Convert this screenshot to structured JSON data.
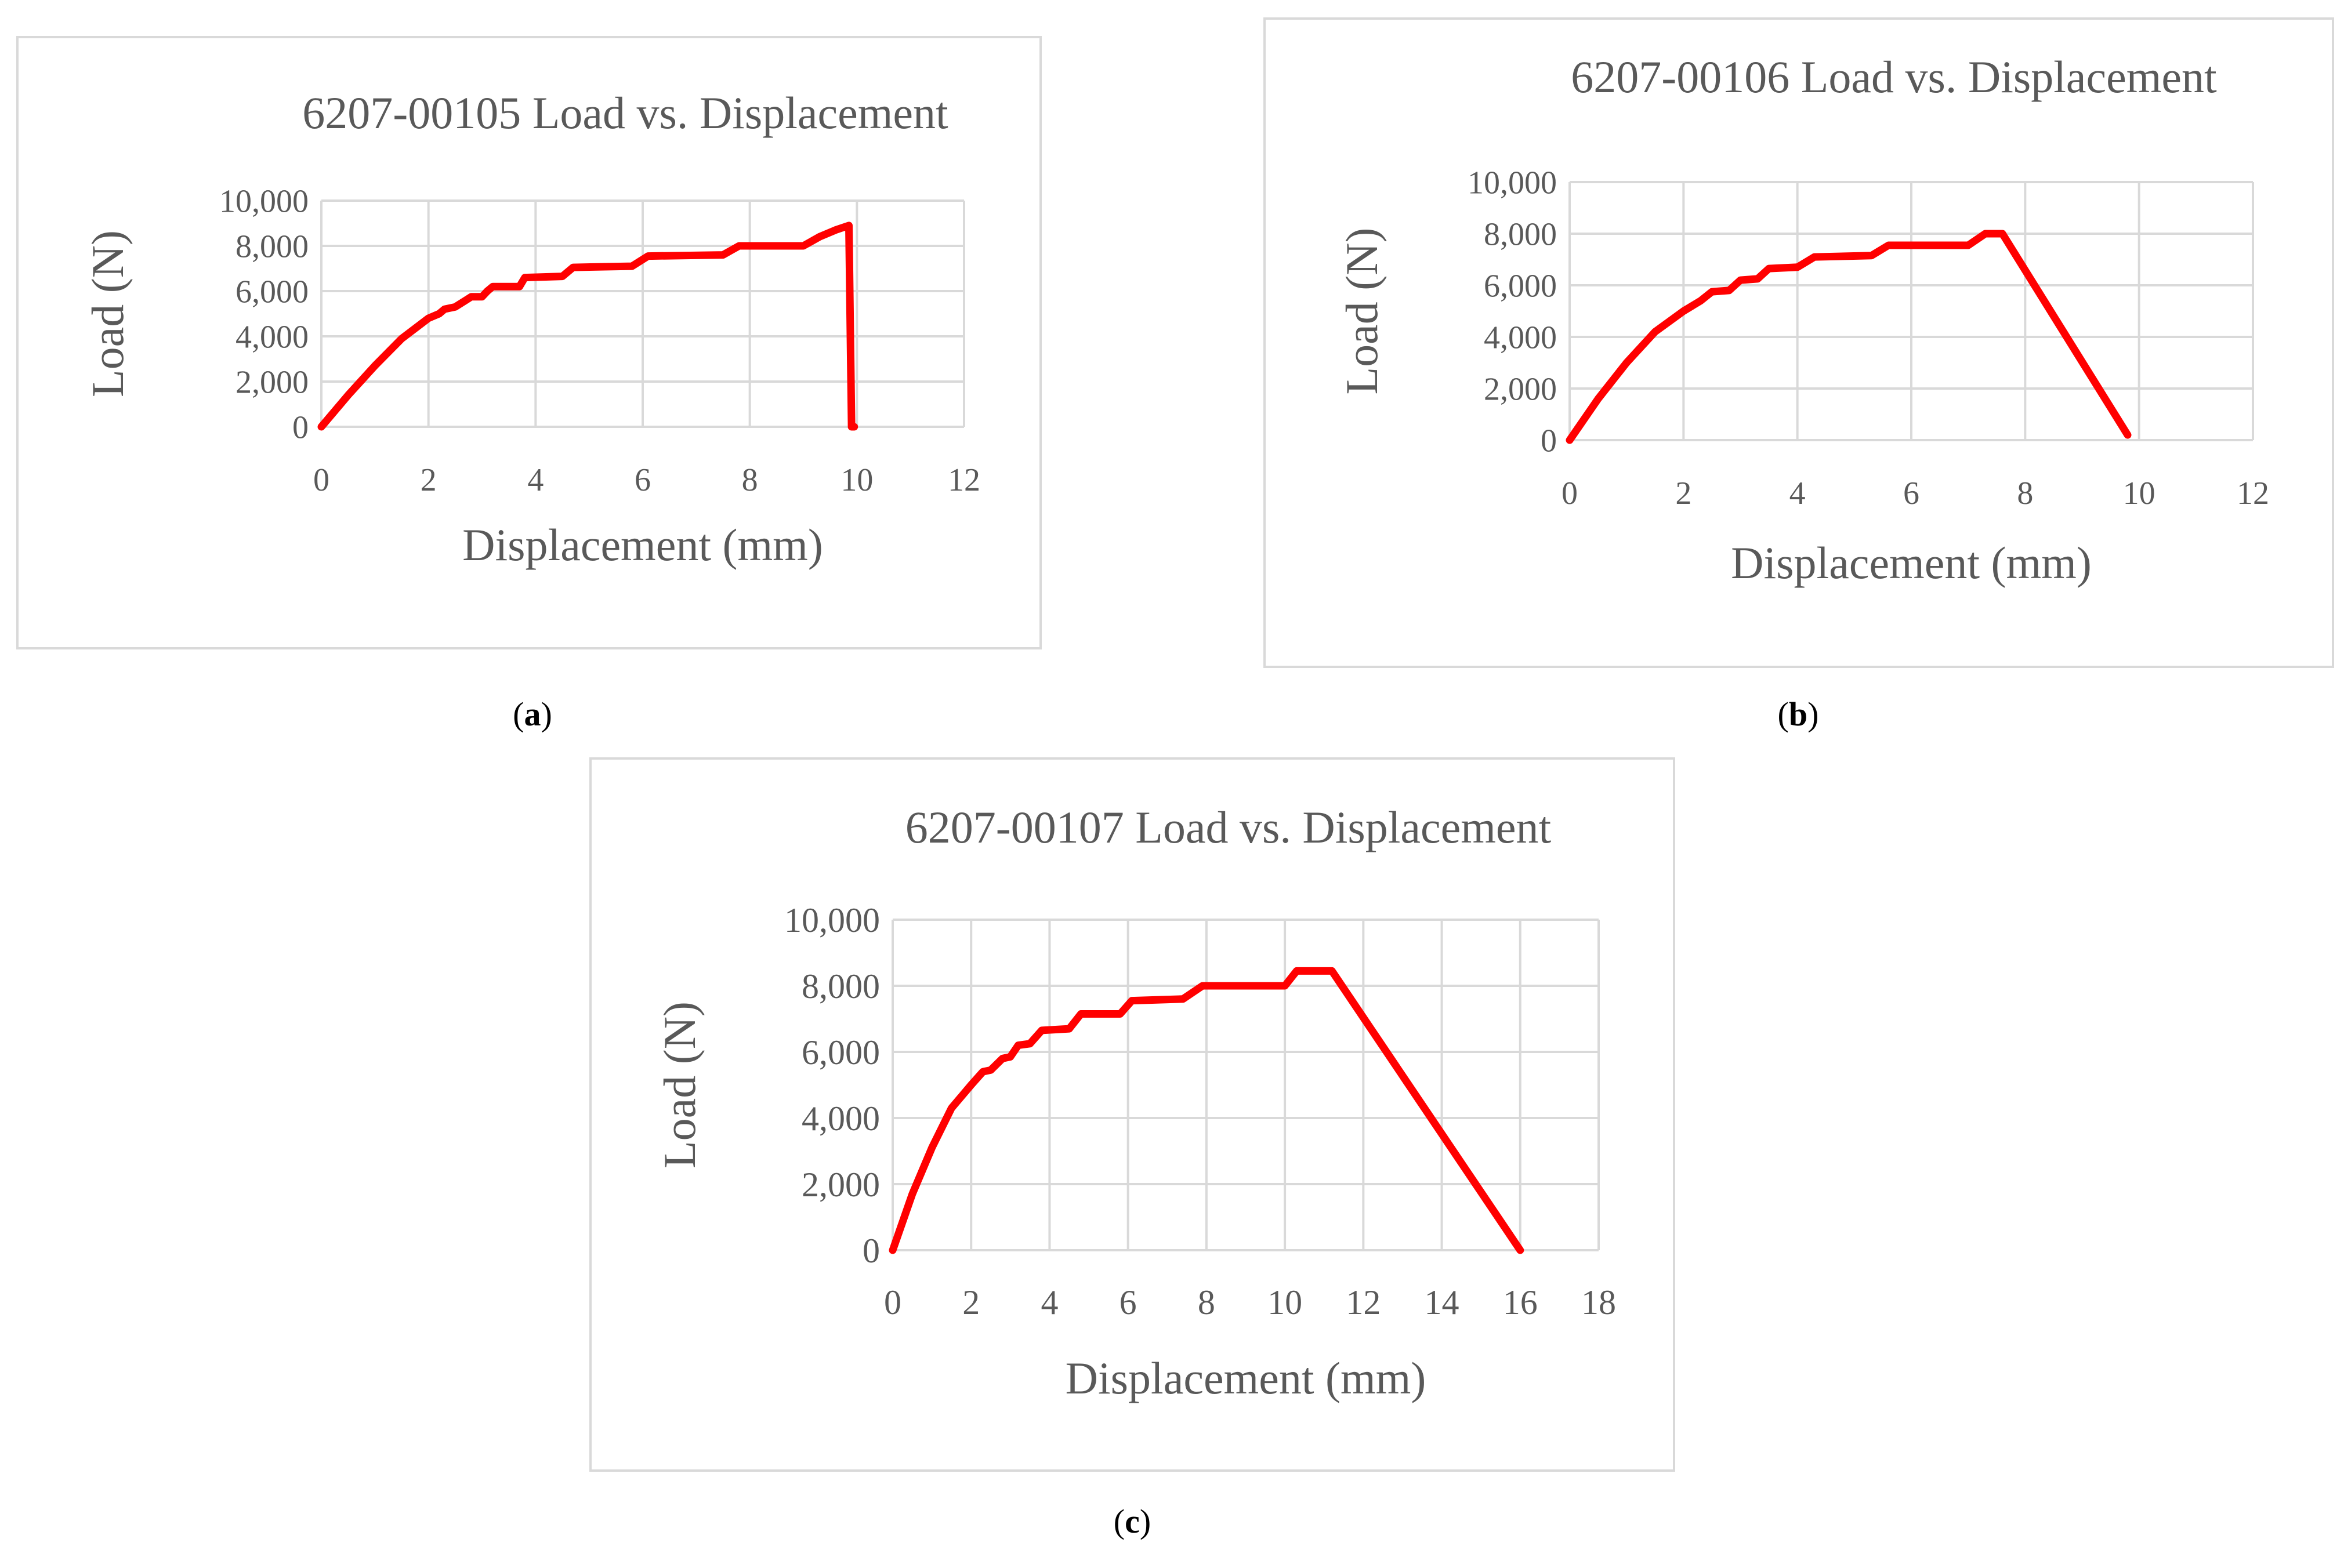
{
  "colors": {
    "line": "#ff0000",
    "grid": "#d9d9d9",
    "text": "#595959",
    "border": "#d9d9d9"
  },
  "chart_data": [
    {
      "id": "a",
      "type": "line",
      "caption": "a",
      "title": "6207-00105 Load vs. Displacement",
      "xlabel": "Displacement (mm)",
      "ylabel": "Load (N)",
      "xlim": [
        0,
        12
      ],
      "ylim": [
        0,
        10000
      ],
      "xticks": [
        0,
        2,
        4,
        6,
        8,
        10,
        12
      ],
      "xtick_labels": [
        "0",
        "2",
        "4",
        "6",
        "8",
        "10",
        "12"
      ],
      "yticks": [
        0,
        2000,
        4000,
        6000,
        8000,
        10000
      ],
      "ytick_labels": [
        "0",
        "2,000",
        "4,000",
        "6,000",
        "8,000",
        "10,000"
      ],
      "grid": true,
      "series": [
        {
          "name": "Load",
          "x": [
            0,
            0.5,
            1.0,
            1.5,
            2.0,
            2.2,
            2.3,
            2.5,
            2.7,
            2.8,
            3.0,
            3.1,
            3.2,
            3.4,
            3.7,
            3.8,
            4.5,
            4.7,
            5.8,
            6.1,
            7.5,
            7.8,
            9.0,
            9.3,
            9.6,
            9.85,
            9.9,
            9.95
          ],
          "y": [
            0,
            1400,
            2700,
            3900,
            4800,
            5000,
            5200,
            5300,
            5600,
            5750,
            5750,
            6000,
            6200,
            6200,
            6200,
            6600,
            6650,
            7050,
            7100,
            7550,
            7600,
            8000,
            8000,
            8400,
            8700,
            8900,
            0,
            0
          ]
        }
      ]
    },
    {
      "id": "b",
      "type": "line",
      "caption": "b",
      "title": "6207-00106 Load vs. Displacement",
      "xlabel": "Displacement (mm)",
      "ylabel": "Load (N)",
      "xlim": [
        0,
        12
      ],
      "ylim": [
        0,
        10000
      ],
      "xticks": [
        0,
        2,
        4,
        6,
        8,
        10,
        12
      ],
      "xtick_labels": [
        "0",
        "2",
        "4",
        "6",
        "8",
        "10",
        "12"
      ],
      "yticks": [
        0,
        2000,
        4000,
        6000,
        8000,
        10000
      ],
      "ytick_labels": [
        "0",
        "2,000",
        "4,000",
        "6,000",
        "8,000",
        "10,000"
      ],
      "grid": true,
      "series": [
        {
          "name": "Load",
          "x": [
            0,
            0.5,
            1.0,
            1.5,
            2.0,
            2.3,
            2.5,
            2.8,
            3.0,
            3.3,
            3.5,
            4.0,
            4.3,
            5.3,
            5.6,
            7.0,
            7.3,
            7.6,
            9.8
          ],
          "y": [
            0,
            1600,
            3000,
            4200,
            5000,
            5400,
            5750,
            5800,
            6200,
            6250,
            6650,
            6700,
            7100,
            7150,
            7550,
            7550,
            8000,
            8000,
            200
          ]
        }
      ]
    },
    {
      "id": "c",
      "type": "line",
      "caption": "c",
      "title": "6207-00107 Load vs. Displacement",
      "xlabel": "Displacement (mm)",
      "ylabel": "Load (N)",
      "xlim": [
        0,
        18
      ],
      "ylim": [
        0,
        10000
      ],
      "xticks": [
        0,
        2,
        4,
        6,
        8,
        10,
        12,
        14,
        16,
        18
      ],
      "xtick_labels": [
        "0",
        "2",
        "4",
        "6",
        "8",
        "10",
        "12",
        "14",
        "16",
        "18"
      ],
      "yticks": [
        0,
        2000,
        4000,
        6000,
        8000,
        10000
      ],
      "ytick_labels": [
        "0",
        "2,000",
        "4,000",
        "6,000",
        "8,000",
        "10,000"
      ],
      "grid": true,
      "series": [
        {
          "name": "Load",
          "x": [
            0,
            0.5,
            1.0,
            1.5,
            2.0,
            2.3,
            2.5,
            2.8,
            3.0,
            3.2,
            3.5,
            3.8,
            4.5,
            4.8,
            5.8,
            6.1,
            7.4,
            7.9,
            10.0,
            10.3,
            11.2,
            16.0
          ],
          "y": [
            0,
            1700,
            3100,
            4300,
            5000,
            5400,
            5450,
            5800,
            5850,
            6200,
            6250,
            6650,
            6700,
            7150,
            7150,
            7550,
            7600,
            8000,
            8000,
            8450,
            8450,
            0
          ]
        }
      ]
    }
  ]
}
